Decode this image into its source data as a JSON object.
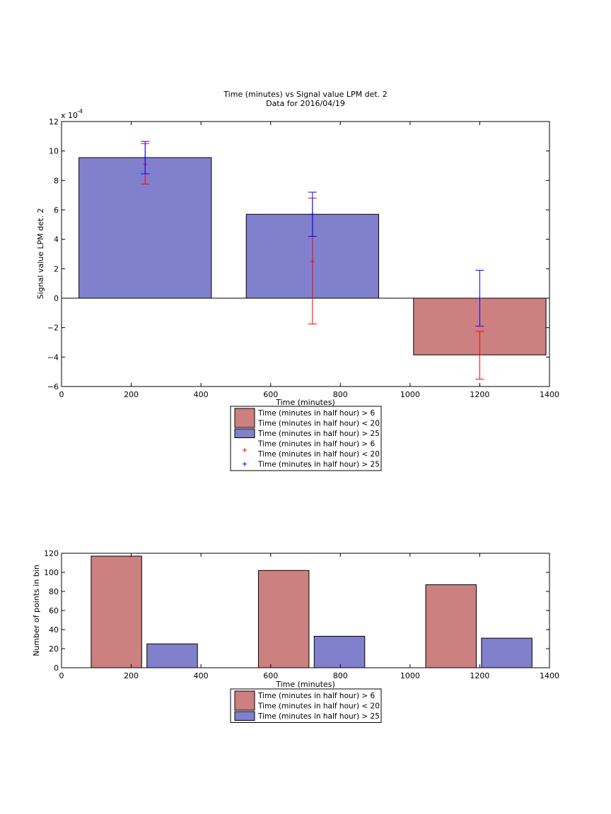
{
  "chart_data": [
    {
      "type": "bar",
      "title": "Time (minutes) vs Signal value LPM det. 2",
      "subtitle": "Data for 2016/04/19",
      "xlabel": "Time (minutes)",
      "ylabel": "Signal value LPM det. 2",
      "y_exponent_label": "x 10",
      "y_exponent_power": "-4",
      "xlim": [
        0,
        1400
      ],
      "ylim": [
        -6,
        12
      ],
      "xticks": [
        "0",
        "200",
        "400",
        "600",
        "800",
        "1000",
        "1200",
        "1400"
      ],
      "yticks": [
        "12",
        "10",
        "8",
        "6",
        "4",
        "2",
        "0",
        "−2",
        "−4",
        "−6"
      ],
      "bars": [
        {
          "x_start": 50,
          "x_end": 430,
          "value": 9.55,
          "color": "#8080cc"
        },
        {
          "x_start": 530,
          "x_end": 910,
          "value": 5.7,
          "color": "#8080cc"
        },
        {
          "x_start": 1010,
          "x_end": 1390,
          "value": -3.85,
          "color": "#cc8080"
        }
      ],
      "errorbars": [
        {
          "x": 240,
          "center": 9.1,
          "low": 7.75,
          "high": 10.5,
          "color": "#ff0000"
        },
        {
          "x": 240,
          "center": 9.55,
          "low": 8.45,
          "high": 10.65,
          "color": "#0000ff"
        },
        {
          "x": 720,
          "center": 2.5,
          "low": -1.75,
          "high": 6.8,
          "color": "#ff0000"
        },
        {
          "x": 720,
          "center": 5.7,
          "low": 4.2,
          "high": 7.2,
          "color": "#0000ff"
        },
        {
          "x": 1200,
          "center": -3.85,
          "low": -5.5,
          "high": -2.25,
          "color": "#ff0000"
        },
        {
          "x": 1200,
          "center": 0.0,
          "low": -1.9,
          "high": 1.9,
          "color": "#0000ff"
        }
      ],
      "legend": [
        {
          "kind": "patch",
          "color": "#cc8080",
          "lines": [
            "Time (minutes in half hour) > 6",
            "Time (minutes in half hour) < 20"
          ]
        },
        {
          "kind": "patch",
          "color": "#8080cc",
          "lines": [
            "Time (minutes in half hour) > 25"
          ]
        },
        {
          "kind": "marker",
          "color": "#ff0000",
          "lines": [
            "Time (minutes in half hour) > 6",
            "Time (minutes in half hour) < 20"
          ]
        },
        {
          "kind": "marker",
          "color": "#0000ff",
          "lines": [
            "Time (minutes in half hour) > 25"
          ]
        }
      ],
      "legend_position": "below"
    },
    {
      "type": "bar",
      "title": "",
      "xlabel": "Time (minutes)",
      "ylabel": "Number of points in bin",
      "xlim": [
        0,
        1400
      ],
      "ylim": [
        0,
        120
      ],
      "xticks": [
        "0",
        "200",
        "400",
        "600",
        "800",
        "1000",
        "1200",
        "1400"
      ],
      "yticks": [
        "120",
        "100",
        "80",
        "60",
        "40",
        "20",
        "0"
      ],
      "bars": [
        {
          "x_start": 85,
          "x_end": 230,
          "value": 117,
          "color": "#cc8080"
        },
        {
          "x_start": 245,
          "x_end": 390,
          "value": 25,
          "color": "#8080cc"
        },
        {
          "x_start": 565,
          "x_end": 710,
          "value": 102,
          "color": "#cc8080"
        },
        {
          "x_start": 725,
          "x_end": 870,
          "value": 33,
          "color": "#8080cc"
        },
        {
          "x_start": 1045,
          "x_end": 1190,
          "value": 87,
          "color": "#cc8080"
        },
        {
          "x_start": 1205,
          "x_end": 1350,
          "value": 31,
          "color": "#8080cc"
        }
      ],
      "legend": [
        {
          "kind": "patch",
          "color": "#cc8080",
          "lines": [
            "Time (minutes in half hour) > 6",
            "Time (minutes in half hour) < 20"
          ]
        },
        {
          "kind": "patch",
          "color": "#8080cc",
          "lines": [
            "Time (minutes in half hour) > 25"
          ]
        }
      ],
      "legend_position": "below"
    }
  ]
}
